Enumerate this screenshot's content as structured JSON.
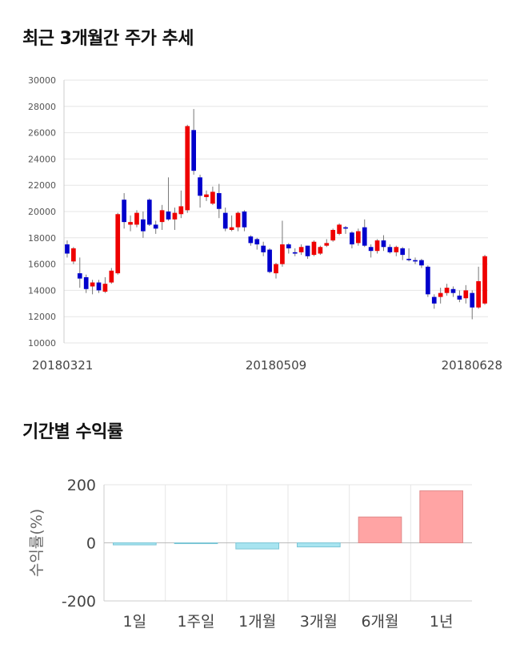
{
  "colors": {
    "up": "#ee0000",
    "down": "#0000cc",
    "grid": "#e6e6e6",
    "bar_pos": "#ffa4a4",
    "bar_neg": "#a8e4f0"
  },
  "chart_data": [
    {
      "type": "candlestick",
      "title": "최근 3개월간 주가 추세",
      "ylim": [
        10000,
        30000
      ],
      "y_ticks": [
        "10000",
        "12000",
        "14000",
        "16000",
        "18000",
        "20000",
        "22000",
        "24000",
        "26000",
        "28000",
        "30000"
      ],
      "x_ticks": [
        "20180321",
        "20180509",
        "20180628"
      ],
      "grid": true,
      "candles": [
        [
          17500,
          16800,
          17800,
          16500
        ],
        [
          16200,
          17200,
          17300,
          16000
        ],
        [
          15300,
          14900,
          16500,
          14200
        ],
        [
          15000,
          14100,
          15200,
          13800
        ],
        [
          14300,
          14600,
          14800,
          13700
        ],
        [
          14600,
          14000,
          14800,
          13800
        ],
        [
          13900,
          14500,
          15000,
          13800
        ],
        [
          14600,
          15500,
          15700,
          14500
        ],
        [
          15300,
          19800,
          19900,
          15200
        ],
        [
          20900,
          19200,
          21400,
          18700
        ],
        [
          19000,
          19200,
          19700,
          18500
        ],
        [
          19000,
          19900,
          20100,
          18800
        ],
        [
          19400,
          18500,
          20000,
          18000
        ],
        [
          20900,
          19000,
          21000,
          18900
        ],
        [
          19000,
          18700,
          19300,
          18300
        ],
        [
          19200,
          20100,
          20500,
          18600
        ],
        [
          20000,
          19400,
          22600,
          19300
        ],
        [
          19400,
          19900,
          20300,
          18600
        ],
        [
          19800,
          20400,
          21600,
          19500
        ],
        [
          20100,
          26500,
          26600,
          19900
        ],
        [
          26200,
          23100,
          27800,
          22800
        ],
        [
          22600,
          21200,
          22800,
          20300
        ],
        [
          21100,
          21300,
          21600,
          20800
        ],
        [
          20600,
          21500,
          21900,
          20500
        ],
        [
          21400,
          20200,
          22100,
          19500
        ],
        [
          19900,
          18700,
          20300,
          18500
        ],
        [
          18600,
          18800,
          19700,
          18500
        ],
        [
          18800,
          19900,
          20000,
          18500
        ],
        [
          20000,
          18800,
          20100,
          18500
        ],
        [
          18100,
          17600,
          18200,
          17400
        ],
        [
          17900,
          17500,
          18000,
          17100
        ],
        [
          17400,
          16900,
          17700,
          16600
        ],
        [
          17100,
          15400,
          17200,
          15300
        ],
        [
          15300,
          16000,
          16100,
          14900
        ],
        [
          16000,
          17500,
          19300,
          15800
        ],
        [
          17500,
          17200,
          17600,
          16800
        ],
        [
          16900,
          16800,
          17200,
          16600
        ],
        [
          16900,
          17300,
          17500,
          16700
        ],
        [
          17400,
          16600,
          17400,
          16400
        ],
        [
          16700,
          17700,
          17800,
          16600
        ],
        [
          16800,
          17300,
          17400,
          16700
        ],
        [
          17400,
          17600,
          17900,
          17300
        ],
        [
          17800,
          18600,
          18700,
          17700
        ],
        [
          18300,
          19000,
          19100,
          18200
        ],
        [
          18800,
          18700,
          18900,
          18300
        ],
        [
          18400,
          17500,
          18500,
          17200
        ],
        [
          17600,
          18500,
          18700,
          17400
        ],
        [
          18800,
          17400,
          19400,
          17300
        ],
        [
          17300,
          17000,
          17500,
          16500
        ],
        [
          17000,
          17800,
          17900,
          16800
        ],
        [
          17800,
          17300,
          18200,
          17000
        ],
        [
          17300,
          16900,
          17500,
          16800
        ],
        [
          16900,
          17300,
          17400,
          16600
        ],
        [
          17200,
          16700,
          17300,
          16300
        ],
        [
          16400,
          16300,
          17200,
          16200
        ],
        [
          16300,
          16200,
          16500,
          16000
        ],
        [
          16300,
          15900,
          16400,
          15700
        ],
        [
          15800,
          13700,
          15900,
          13500
        ],
        [
          13500,
          13000,
          13700,
          12600
        ],
        [
          13500,
          13800,
          14200,
          13000
        ],
        [
          13800,
          14200,
          14500,
          13600
        ],
        [
          14100,
          13800,
          14300,
          13500
        ],
        [
          13600,
          13300,
          14000,
          13100
        ],
        [
          13400,
          14000,
          14400,
          13000
        ],
        [
          13800,
          12700,
          14000,
          11800
        ],
        [
          12700,
          14700,
          15800,
          12600
        ],
        [
          13000,
          16600,
          16700,
          12900
        ]
      ]
    },
    {
      "type": "bar",
      "title": "기간별 수익률",
      "ylabel": "수익률(%)",
      "ylim": [
        -200,
        200
      ],
      "y_ticks": [
        "200",
        "0",
        "-200"
      ],
      "categories": [
        "1일",
        "1주일",
        "1개월",
        "3개월",
        "6개월",
        "1년"
      ],
      "values": [
        -7,
        -2,
        -21,
        -14,
        89,
        179
      ]
    }
  ]
}
